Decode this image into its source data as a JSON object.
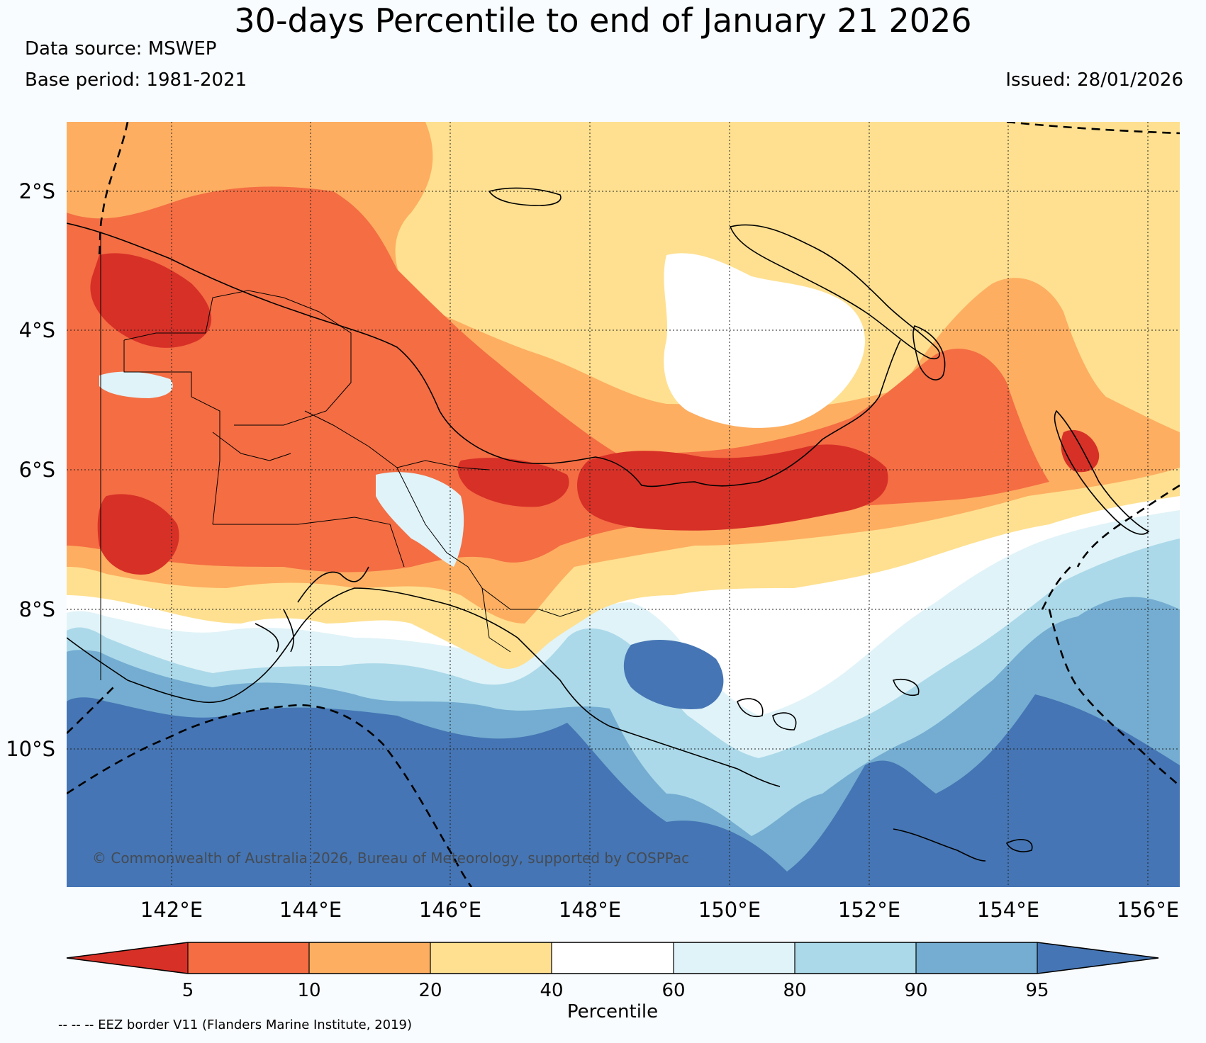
{
  "header": {
    "title": "30-days Percentile to end of January 21 2026",
    "data_source": "Data source: MSWEP",
    "base_period": "Base period: 1981-2021",
    "issued": "Issued: 28/01/2026"
  },
  "map": {
    "lat_labels": [
      "2°S",
      "4°S",
      "6°S",
      "8°S",
      "10°S"
    ],
    "lon_labels": [
      "142°E",
      "144°E",
      "146°E",
      "148°E",
      "150°E",
      "152°E",
      "154°E",
      "156°E"
    ],
    "copyright": "© Commonwealth of Australia 2026, Bureau of Meteorology, supported by COSPPac"
  },
  "colorbar": {
    "label": "Percentile",
    "ticks": [
      "5",
      "10",
      "20",
      "40",
      "60",
      "80",
      "90",
      "95"
    ],
    "colors": [
      "#d73027",
      "#f46d43",
      "#fdae61",
      "#fee090",
      "#ffffff",
      "#e0f3f8",
      "#abd9e9",
      "#74add1",
      "#4575b4"
    ]
  },
  "footnote": "-- -- -- EEZ border V11 (Flanders Marine Institute, 2019)"
}
